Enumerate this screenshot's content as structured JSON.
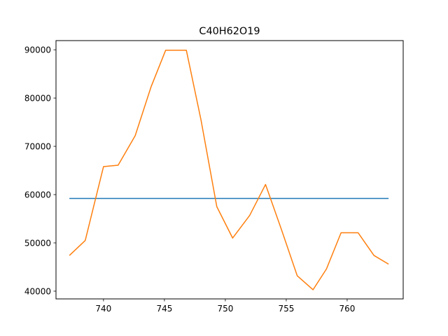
{
  "chart_data": {
    "type": "line",
    "title": "C40H62O19",
    "xlabel": "",
    "ylabel": "",
    "xlim": [
      736.1,
      764.6
    ],
    "ylim": [
      38400,
      91900
    ],
    "xticks": [
      740,
      745,
      750,
      755,
      760
    ],
    "yticks": [
      40000,
      50000,
      60000,
      70000,
      80000,
      90000
    ],
    "grid": false,
    "legend": "none",
    "series": [
      {
        "color": "#1f77b4",
        "x": [
          737.2,
          763.4
        ],
        "y": [
          59200,
          59200
        ]
      },
      {
        "color": "#ff7f0e",
        "x": [
          737.2,
          738.5,
          740.0,
          741.2,
          742.6,
          743.9,
          745.1,
          746.8,
          748.0,
          749.3,
          750.6,
          752.0,
          753.3,
          754.6,
          755.9,
          757.2,
          758.3,
          759.5,
          760.9,
          762.2,
          763.4
        ],
        "y": [
          47400,
          50500,
          65800,
          66100,
          72200,
          82300,
          89900,
          89900,
          75500,
          57500,
          51000,
          55700,
          62100,
          52800,
          43200,
          40300,
          44600,
          52100,
          52100,
          47400,
          45600
        ]
      }
    ]
  }
}
